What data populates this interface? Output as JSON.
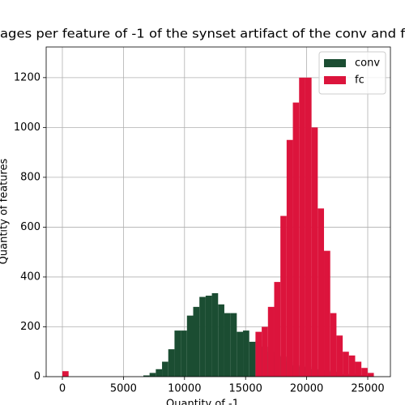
{
  "chart_data": {
    "type": "histogram",
    "title": "ages per feature of -1 of the synset artifact of the conv and f",
    "xlabel": "Quantity of -1",
    "ylabel": "Quantity of features",
    "bins": [
      0,
      510,
      1020,
      1530,
      2040,
      2550,
      3060,
      3570,
      4080,
      4590,
      5100,
      5610,
      6120,
      6630,
      7140,
      7650,
      8160,
      8670,
      9180,
      9690,
      10200,
      10710,
      11220,
      11730,
      12240,
      12750,
      13260,
      13770,
      14280,
      14790,
      15300,
      15810,
      16320,
      16830,
      17340,
      17850,
      18360,
      18870,
      19380,
      19890,
      20400,
      20910,
      21420,
      21930,
      22440,
      22950,
      23460,
      23970,
      24480,
      24990,
      25500
    ],
    "series": [
      {
        "name": "conv",
        "color": "#1b4d32",
        "values": [
          0,
          0,
          0,
          0,
          0,
          0,
          0,
          0,
          0,
          0,
          0,
          0,
          0,
          5,
          15,
          30,
          60,
          110,
          185,
          185,
          245,
          280,
          320,
          325,
          335,
          290,
          255,
          255,
          180,
          185,
          140,
          145,
          120,
          100,
          85,
          80,
          60,
          45,
          40,
          40,
          30,
          25,
          25,
          20,
          15,
          10,
          12,
          8,
          5,
          3
        ]
      },
      {
        "name": "fc",
        "color": "#dc143c",
        "values": [
          22,
          0,
          0,
          0,
          0,
          0,
          0,
          0,
          0,
          0,
          0,
          0,
          0,
          0,
          0,
          0,
          0,
          0,
          0,
          0,
          0,
          0,
          0,
          0,
          0,
          0,
          0,
          0,
          0,
          0,
          0,
          180,
          200,
          280,
          380,
          645,
          950,
          1100,
          1200,
          1200,
          1000,
          675,
          505,
          255,
          165,
          100,
          85,
          60,
          35,
          15
        ]
      }
    ],
    "xlim": [
      -1326,
      26857
    ],
    "xticks": [
      0,
      5000,
      10000,
      15000,
      20000,
      25000
    ],
    "ylim": [
      0,
      1323
    ],
    "yticks": [
      0,
      200,
      400,
      600,
      800,
      1000,
      1200
    ],
    "grid": true,
    "legend": "upper right"
  }
}
